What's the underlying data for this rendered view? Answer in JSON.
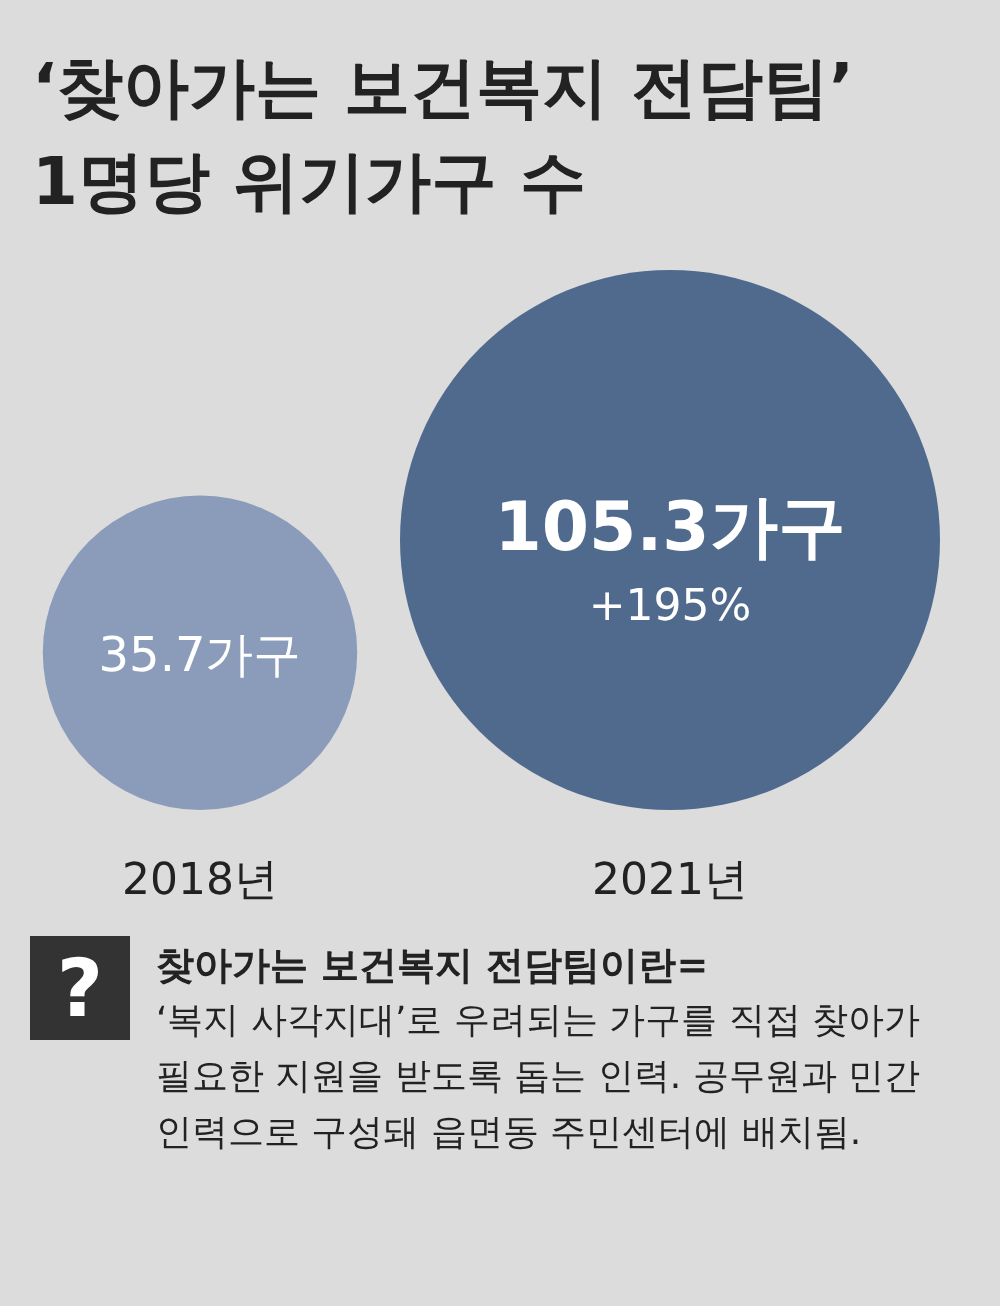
{
  "chart_data": {
    "type": "other",
    "title": "‘찾아가는 보건복지 전담팀’",
    "subtitle": "1명당 위기가구 수",
    "categories": [
      "2018년",
      "2021년"
    ],
    "values": [
      35.7,
      105.3
    ],
    "value_labels": [
      "35.7가구",
      "105.3가구"
    ],
    "colors": [
      "#8b9cba",
      "#506a8e"
    ],
    "annotations": [
      "+195%",
      "?",
      "찾아가는 보건복지 전담팀이란=",
      "‘복지 사각지대’로 우려되는 가구를 직접 찾아가 필요한 지원을 받도록 돕는 인력. 공무원과 민간 인력으로 구성돼 읍면동 주민센터에 배치됨."
    ]
  }
}
